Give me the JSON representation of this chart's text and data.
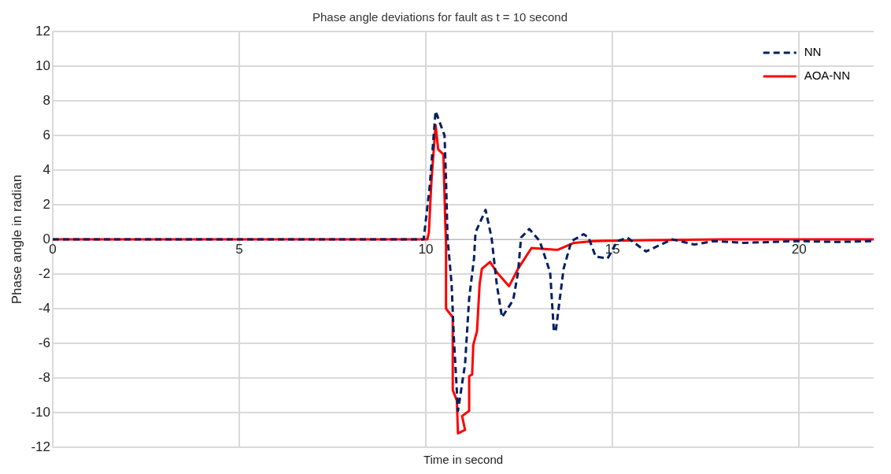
{
  "chart_data": {
    "type": "line",
    "title": "Phase angle deviations for fault as t = 10 second",
    "xlabel": "Time in second",
    "ylabel": "Phase angle in radian",
    "xlim": [
      0,
      22
    ],
    "xticks": [
      0,
      5,
      10,
      15,
      20
    ],
    "ylim": [
      -12,
      12
    ],
    "yticks": [
      -12,
      -10,
      -8,
      -6,
      -4,
      -2,
      0,
      2,
      4,
      6,
      8,
      10,
      12
    ],
    "grid": true,
    "legend": "top right",
    "marker": "none",
    "series": [
      {
        "name": "NN",
        "color": "#002060",
        "line_style": "dashed",
        "x": [
          0,
          5,
          9.94,
          10.1,
          10.26,
          10.5,
          10.54,
          10.58,
          10.69,
          10.75,
          10.86,
          11.05,
          11.16,
          11.29,
          11.33,
          11.6,
          11.76,
          11.9,
          12.04,
          12.34,
          12.47,
          12.55,
          12.77,
          13.05,
          13.33,
          13.43,
          13.48,
          13.69,
          13.9,
          14.23,
          14.36,
          14.55,
          14.87,
          15.13,
          15.4,
          15.9,
          16.6,
          17.2,
          17.7,
          18.5,
          20,
          21,
          22
        ],
        "values": [
          0,
          0,
          0,
          3.0,
          7.4,
          6.0,
          3.4,
          0.1,
          -2.6,
          -5.7,
          -9.9,
          -7.2,
          -3.4,
          -1.1,
          0.4,
          1.7,
          0.1,
          -2.6,
          -4.5,
          -3.5,
          -1.9,
          0.1,
          0.6,
          -0.1,
          -1.9,
          -5.3,
          -5.3,
          -1.7,
          -0.1,
          0.3,
          0.1,
          -1.0,
          -1.1,
          -0.1,
          0.1,
          -0.7,
          0,
          -0.3,
          -0.1,
          -0.2,
          -0.1,
          -0.15,
          -0.1
        ]
      },
      {
        "name": "AOA-NN",
        "color": "#ff0000",
        "line_style": "solid",
        "x": [
          0,
          5,
          10.04,
          10.08,
          10.15,
          10.26,
          10.33,
          10.47,
          10.52,
          10.54,
          10.54,
          10.72,
          10.72,
          10.83,
          10.86,
          11.05,
          10.97,
          11.16,
          11.16,
          11.24,
          11.27,
          11.37,
          11.44,
          11.5,
          11.72,
          11.9,
          12.23,
          12.47,
          12.83,
          13.48,
          13.54,
          13.97,
          14.5,
          16,
          18,
          20,
          22
        ],
        "values": [
          0,
          0,
          0,
          0.4,
          3.4,
          6.6,
          5.2,
          4.9,
          1.0,
          -0.3,
          -4.0,
          -4.5,
          -8.7,
          -9.3,
          -11.2,
          -11.0,
          -10.2,
          -9.9,
          -7.9,
          -7.8,
          -6.1,
          -5.3,
          -2.6,
          -1.7,
          -1.3,
          -1.9,
          -2.7,
          -1.7,
          -0.5,
          -0.6,
          -0.6,
          -0.2,
          -0.1,
          -0.05,
          0,
          0,
          0
        ]
      }
    ]
  }
}
